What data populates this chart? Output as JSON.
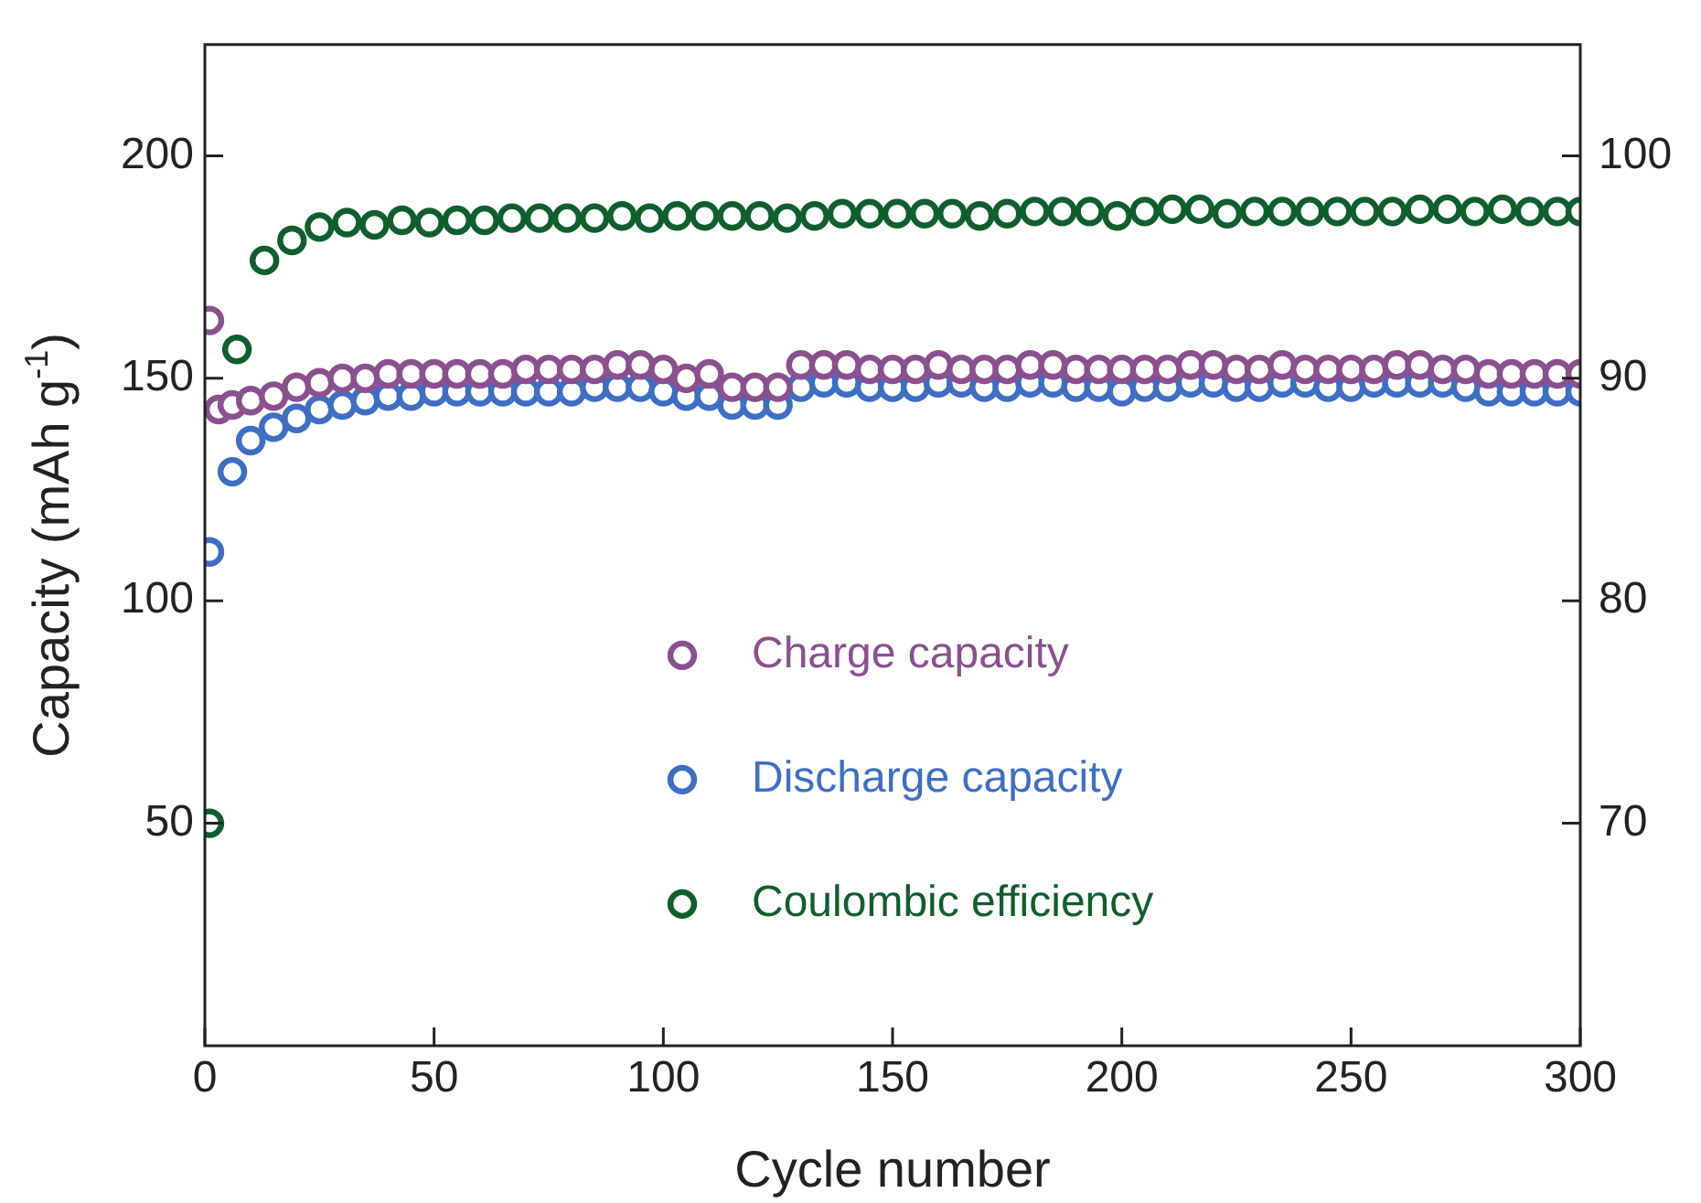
{
  "chart_data": {
    "type": "scatter",
    "xlabel": "Cycle number",
    "ylabel": "Capacity (mAh g$^{-1}$)",
    "xlim": [
      0,
      300
    ],
    "xticks": [
      0,
      50,
      100,
      150,
      200,
      250,
      300
    ],
    "ylim": [
      0,
      225
    ],
    "yticks": [
      50,
      100,
      150,
      200
    ],
    "y2lim": [
      60,
      105
    ],
    "y2ticks": [
      70,
      80,
      90,
      100
    ],
    "grid": false,
    "legend": "center",
    "marker": "circle",
    "series": [
      {
        "name": "Charge capacity",
        "color": "#8b4f8f",
        "x": [
          1,
          3,
          6,
          10,
          15,
          20,
          25,
          30,
          35,
          40,
          45,
          50,
          55,
          60,
          65,
          70,
          75,
          80,
          85,
          90,
          95,
          100,
          105,
          110,
          115,
          120,
          125,
          130,
          135,
          140,
          145,
          150,
          155,
          160,
          165,
          170,
          175,
          180,
          185,
          190,
          195,
          200,
          205,
          210,
          215,
          220,
          225,
          230,
          235,
          240,
          245,
          250,
          255,
          260,
          265,
          270,
          275,
          280,
          285,
          290,
          295,
          300
        ],
        "values": [
          163,
          143,
          144,
          145,
          146,
          148,
          149,
          150,
          150,
          151,
          151,
          151,
          151,
          151,
          151,
          152,
          152,
          152,
          152,
          153,
          153,
          152,
          150,
          151,
          148,
          148,
          148,
          153,
          153,
          153,
          152,
          152,
          152,
          153,
          152,
          152,
          152,
          153,
          153,
          152,
          152,
          152,
          152,
          152,
          153,
          153,
          152,
          152,
          153,
          152,
          152,
          152,
          152,
          153,
          153,
          152,
          152,
          151,
          151,
          151,
          151,
          151
        ]
      },
      {
        "name": "Discharge capacity",
        "color": "#3d6ec4",
        "x": [
          1,
          6,
          10,
          15,
          20,
          25,
          30,
          35,
          40,
          45,
          50,
          55,
          60,
          65,
          70,
          75,
          80,
          85,
          90,
          95,
          100,
          105,
          110,
          115,
          120,
          125,
          130,
          135,
          140,
          145,
          150,
          155,
          160,
          165,
          170,
          175,
          180,
          185,
          190,
          195,
          200,
          205,
          210,
          215,
          220,
          225,
          230,
          235,
          240,
          245,
          250,
          255,
          260,
          265,
          270,
          275,
          280,
          285,
          290,
          295,
          300
        ],
        "values": [
          111,
          129,
          136,
          139,
          141,
          143,
          144,
          145,
          146,
          146,
          147,
          147,
          147,
          147,
          147,
          147,
          147,
          148,
          148,
          148,
          147,
          146,
          146,
          144,
          144,
          144,
          148,
          149,
          149,
          148,
          148,
          148,
          149,
          149,
          148,
          148,
          149,
          149,
          148,
          148,
          147,
          148,
          148,
          149,
          149,
          148,
          148,
          149,
          149,
          148,
          148,
          149,
          149,
          149,
          149,
          148,
          147,
          147,
          147,
          147,
          147
        ]
      },
      {
        "name": "Coulombic efficiency",
        "color": "#0f5e2e",
        "axis": "y2",
        "x": [
          1,
          7,
          13,
          19,
          25,
          31,
          37,
          43,
          49,
          55,
          61,
          67,
          73,
          79,
          85,
          91,
          97,
          103,
          109,
          115,
          121,
          127,
          133,
          139,
          145,
          151,
          157,
          163,
          169,
          175,
          181,
          187,
          193,
          199,
          205,
          211,
          217,
          223,
          229,
          235,
          241,
          247,
          253,
          259,
          265,
          271,
          277,
          283,
          289,
          295,
          300
        ],
        "values": [
          70,
          91.3,
          95.3,
          96.2,
          96.8,
          97.0,
          96.9,
          97.1,
          97.0,
          97.1,
          97.1,
          97.2,
          97.2,
          97.2,
          97.2,
          97.3,
          97.2,
          97.3,
          97.3,
          97.3,
          97.3,
          97.2,
          97.3,
          97.4,
          97.4,
          97.4,
          97.4,
          97.4,
          97.3,
          97.4,
          97.5,
          97.5,
          97.5,
          97.3,
          97.5,
          97.6,
          97.6,
          97.4,
          97.5,
          97.5,
          97.5,
          97.5,
          97.5,
          97.5,
          97.6,
          97.6,
          97.5,
          97.6,
          97.5,
          97.5,
          97.5
        ]
      }
    ]
  }
}
